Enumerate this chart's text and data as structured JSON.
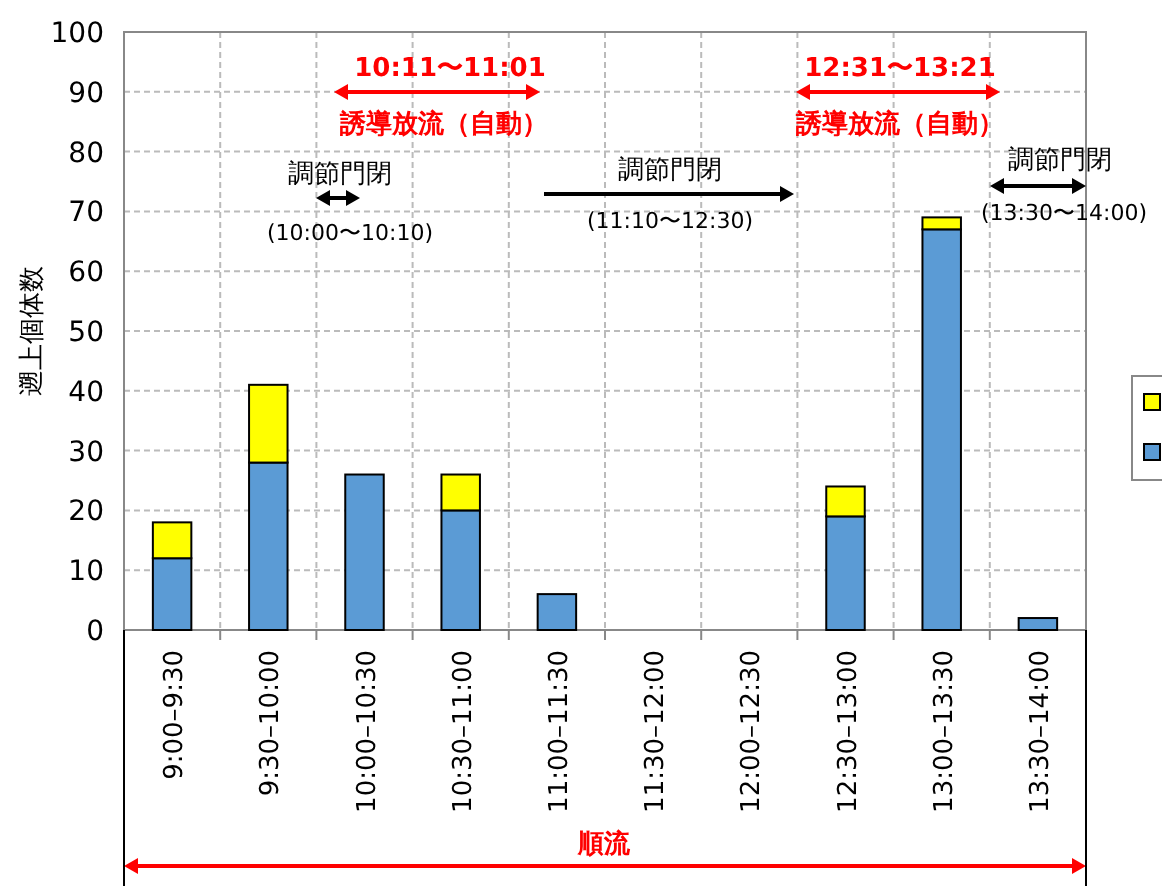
{
  "chart_data": {
    "type": "bar",
    "stacked": true,
    "ylabel": "遡上個体数",
    "categories": [
      "9:00–9:30",
      "9:30–10:00",
      "10:00–10:30",
      "10:30–11:00",
      "11:00–11:30",
      "11:30–12:00",
      "12:00–12:30",
      "12:30–13:00",
      "13:00–13:30",
      "13:30–14:00"
    ],
    "series": [
      {
        "color": "#5b9bd5",
        "values": [
          12,
          28,
          26,
          20,
          6,
          0,
          0,
          19,
          67,
          2
        ]
      },
      {
        "color": "#ffff00",
        "values": [
          6,
          13,
          0,
          6,
          0,
          0,
          0,
          5,
          2,
          0
        ]
      }
    ],
    "ylim": [
      0,
      100
    ],
    "yticks": [
      0,
      10,
      20,
      30,
      40,
      50,
      60,
      70,
      80,
      90,
      100
    ],
    "grid": true,
    "annotations": [
      "10:11〜11:01",
      "誘導放流（自動）",
      "12:31〜13:21",
      "誘導放流（自動）",
      "調節門閉",
      "(10:00〜10:10)",
      "調節門閉",
      "(11:10〜12:30)",
      "調節門閉",
      "(13:30〜14:00)",
      "順流"
    ]
  }
}
